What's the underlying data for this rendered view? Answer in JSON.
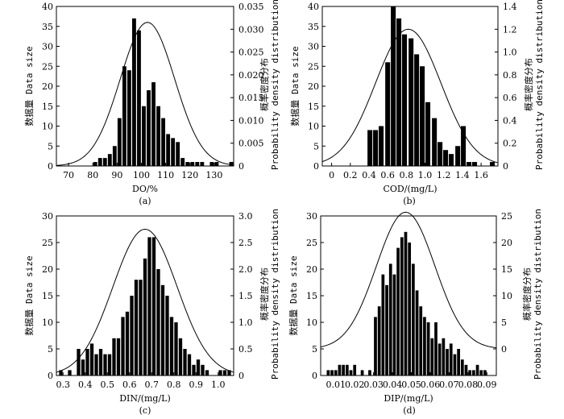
{
  "chart_data": [
    {
      "type": "bar",
      "panel_label": "(a)",
      "xlabel": "DO/%",
      "ylabel": "数据量 Data size",
      "y2label": "概率密度分布 Probability density distribution",
      "xlim": [
        65,
        138
      ],
      "ylim": [
        0,
        40
      ],
      "y2lim": [
        0,
        0.035
      ],
      "xticks": [
        "70",
        "80",
        "90",
        "100",
        "110",
        "120",
        "130"
      ],
      "xtick_values": [
        70,
        80,
        90,
        100,
        110,
        120,
        130
      ],
      "yticks": [
        "0",
        "5",
        "10",
        "15",
        "20",
        "25",
        "30",
        "35",
        "40"
      ],
      "y2ticks": [
        "0",
        "0.005",
        "0.010",
        "0.015",
        "0.020",
        "0.025",
        "0.030",
        "0.035"
      ],
      "bin_width": 2,
      "bin_centers": [
        81,
        83,
        85,
        87,
        89,
        91,
        93,
        95,
        97,
        99,
        101,
        103,
        105,
        107,
        109,
        111,
        113,
        115,
        117,
        119,
        121,
        123,
        125,
        127,
        129,
        131,
        133,
        135,
        137
      ],
      "values": [
        1,
        2,
        2,
        3,
        5,
        12,
        25,
        24,
        37,
        34,
        15,
        19,
        21,
        15,
        12,
        8,
        7,
        6,
        2,
        1,
        1,
        1,
        1,
        0,
        1,
        1,
        0,
        0,
        1
      ],
      "curve": {
        "mean": 102.5,
        "sd": 11.2,
        "peak": 0.0315,
        "axis": "y2"
      }
    },
    {
      "type": "bar",
      "panel_label": "(b)",
      "xlabel": "COD/(mg/L)",
      "ylabel": "数据量 Data size",
      "y2label": "概率密度分布 Probability density distribution",
      "xlim": [
        -0.1,
        1.78
      ],
      "ylim": [
        0,
        40
      ],
      "y2lim": [
        0,
        1.4
      ],
      "xticks": [
        "0",
        "0.2",
        "0.4",
        "0.6",
        "0.8",
        "1.0",
        "1.2",
        "1.4",
        "1.6"
      ],
      "xtick_values": [
        0,
        0.2,
        0.4,
        0.6,
        0.8,
        1.0,
        1.2,
        1.4,
        1.6
      ],
      "yticks": [
        "0",
        "5",
        "10",
        "15",
        "20",
        "25",
        "30",
        "35",
        "40"
      ],
      "y2ticks": [
        "0",
        "0.2",
        "0.4",
        "0.6",
        "0.8",
        "1.0",
        "1.2",
        "1.4"
      ],
      "bin_width": 0.0625,
      "bin_centers": [
        0.41,
        0.47,
        0.53,
        0.6,
        0.66,
        0.72,
        0.78,
        0.85,
        0.91,
        0.97,
        1.03,
        1.1,
        1.16,
        1.22,
        1.28,
        1.35,
        1.41,
        1.47,
        1.53,
        1.6,
        1.66,
        1.72
      ],
      "values": [
        9,
        9,
        10,
        26,
        40,
        37,
        33,
        32,
        28,
        25,
        16,
        12,
        6,
        4,
        3,
        5,
        10,
        1,
        1,
        0,
        0,
        1
      ],
      "curve": {
        "mean": 0.82,
        "sd": 0.35,
        "peak": 1.2,
        "axis": "y2"
      }
    },
    {
      "type": "bar",
      "panel_label": "(c)",
      "xlabel": "DIN/(mg/L)",
      "ylabel": "数据量 Data size",
      "y2label": "概率密度分布 Probability density distribution",
      "xlim": [
        0.27,
        1.07
      ],
      "ylim": [
        0,
        30
      ],
      "y2lim": [
        0,
        3.0
      ],
      "xticks": [
        "0.3",
        "0.4",
        "0.5",
        "0.6",
        "0.7",
        "0.8",
        "0.9",
        "1.0"
      ],
      "xtick_values": [
        0.3,
        0.4,
        0.5,
        0.6,
        0.7,
        0.8,
        0.9,
        1.0
      ],
      "yticks": [
        "0",
        "5",
        "10",
        "15",
        "20",
        "25",
        "30"
      ],
      "y2ticks": [
        "0",
        "0.5",
        "1.0",
        "1.5",
        "2.0",
        "2.5",
        "3.0"
      ],
      "bin_width": 0.02,
      "bin_centers": [
        0.29,
        0.33,
        0.37,
        0.39,
        0.41,
        0.43,
        0.45,
        0.47,
        0.49,
        0.51,
        0.53,
        0.55,
        0.57,
        0.59,
        0.61,
        0.63,
        0.65,
        0.67,
        0.69,
        0.71,
        0.73,
        0.75,
        0.77,
        0.79,
        0.81,
        0.83,
        0.85,
        0.87,
        0.89,
        0.91,
        0.93,
        0.95,
        1.01,
        1.03,
        1.05
      ],
      "values": [
        1,
        1,
        5,
        3,
        5,
        6,
        4,
        5,
        4,
        4,
        7,
        7,
        11,
        12,
        15,
        18,
        18,
        22,
        26,
        26,
        20,
        17,
        15,
        11,
        10,
        7,
        5,
        4,
        2,
        3,
        2,
        1,
        1,
        1,
        1
      ],
      "curve": {
        "mean": 0.67,
        "sd": 0.145,
        "peak": 2.75,
        "axis": "y2"
      }
    },
    {
      "type": "bar",
      "panel_label": "(d)",
      "xlabel": "DIP/(mg/L)",
      "ylabel": "数据量 Data size",
      "y2label": "概率密度分布 Probability density distribution",
      "xlim": [
        0.002,
        0.095
      ],
      "ylim": [
        0,
        30
      ],
      "y2lim": [
        -5,
        25
      ],
      "xticks": [
        "0.01",
        "0.02",
        "0.03",
        "0.04",
        "0.05",
        "0.06",
        "0.07",
        "0.08",
        "0.09"
      ],
      "xtick_values": [
        0.01,
        0.02,
        0.03,
        0.04,
        0.05,
        0.06,
        0.07,
        0.08,
        0.09
      ],
      "yticks": [
        "0",
        "5",
        "10",
        "15",
        "20",
        "25",
        "30"
      ],
      "y2ticks": [
        "0",
        "5",
        "10",
        "15",
        "20",
        "25"
      ],
      "bin_width": 0.0021,
      "bin_centers": [
        0.006,
        0.008,
        0.01,
        0.012,
        0.014,
        0.016,
        0.018,
        0.02,
        0.024,
        0.028,
        0.031,
        0.033,
        0.035,
        0.037,
        0.039,
        0.041,
        0.043,
        0.045,
        0.047,
        0.049,
        0.051,
        0.053,
        0.055,
        0.057,
        0.059,
        0.061,
        0.063,
        0.065,
        0.067,
        0.069,
        0.071,
        0.073,
        0.075,
        0.077,
        0.079,
        0.081,
        0.083,
        0.085,
        0.087,
        0.089
      ],
      "values": [
        1,
        1,
        1,
        2,
        2,
        2,
        1,
        2,
        1,
        1,
        11,
        13,
        19,
        17,
        21,
        19,
        24,
        26,
        27,
        25,
        21,
        16,
        13,
        11,
        10,
        7,
        10,
        6,
        7,
        5,
        6,
        4,
        5,
        3,
        2,
        1,
        1,
        2,
        1,
        1
      ],
      "curve": {
        "mean": 0.047,
        "sd": 0.0155,
        "peak": 25.7,
        "axis": "y2"
      }
    }
  ]
}
